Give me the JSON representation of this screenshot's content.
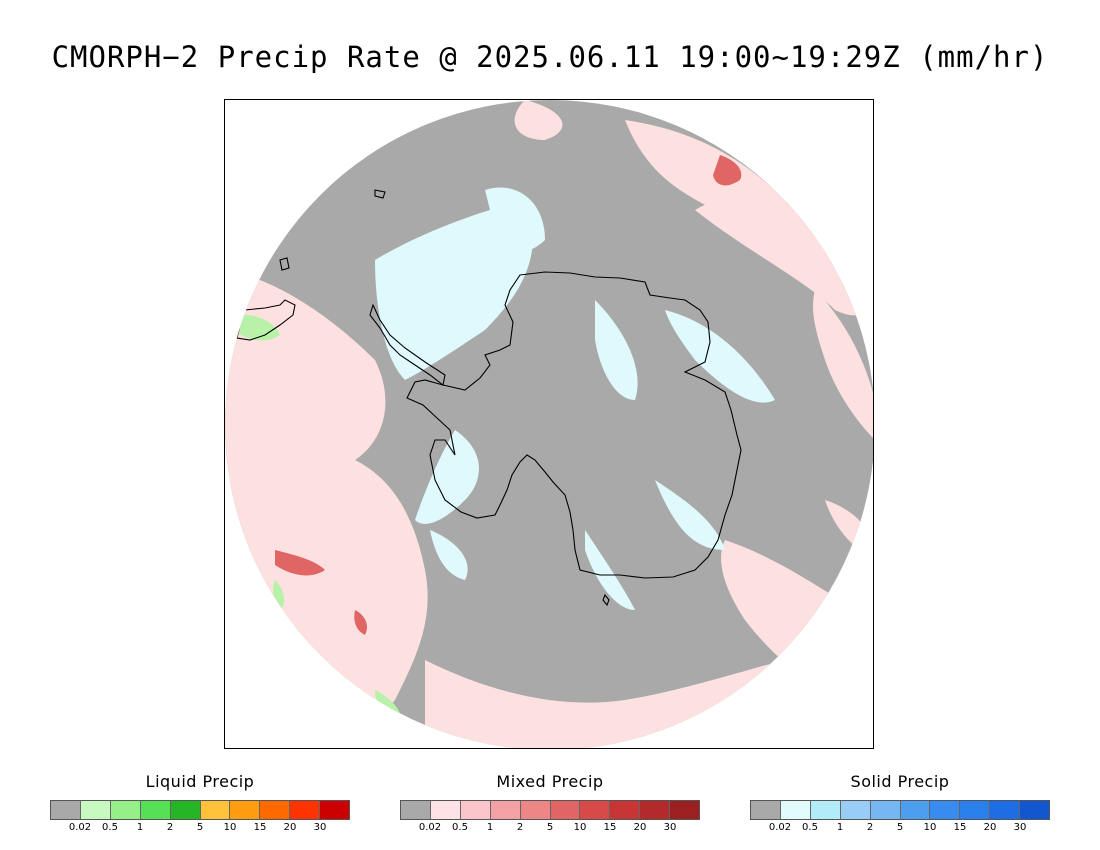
{
  "title": "CMORPH−2 Precip Rate @ 2025.06.11 19:00~19:29Z (mm/hr)",
  "map": {
    "projection": "south-polar-stereographic",
    "region": "Antarctica / Southern Ocean",
    "colors": {
      "no_precip": "#a9a9a9",
      "mixed_light": "#fde1e1",
      "mixed_mod": "#f4a3a3",
      "mixed_heavy": "#e06565",
      "solid_light": "#dff9fc",
      "liquid_light": "#b8f2a8",
      "coast": "#000000"
    }
  },
  "legends": [
    {
      "title": "Liquid Precip",
      "colors": [
        "#a9a9a9",
        "#c8f9c0",
        "#96ef88",
        "#55e055",
        "#26b526",
        "#ffc23a",
        "#ff9c10",
        "#ff6a00",
        "#ff3300",
        "#cc0000"
      ],
      "ticks": [
        "0.02",
        "0.5",
        "1",
        "2",
        "5",
        "10",
        "15",
        "20",
        "30"
      ]
    },
    {
      "title": "Mixed Precip",
      "colors": [
        "#a9a9a9",
        "#fde3e6",
        "#fbc6cb",
        "#f4a1a6",
        "#ee8686",
        "#e26565",
        "#d84a4a",
        "#c83535",
        "#b22a2a",
        "#9c2020"
      ],
      "ticks": [
        "0.02",
        "0.5",
        "1",
        "2",
        "5",
        "10",
        "15",
        "20",
        "30"
      ]
    },
    {
      "title": "Solid Precip",
      "colors": [
        "#a9a9a9",
        "#e2fcfc",
        "#b2ecf9",
        "#98cdf8",
        "#76b6f2",
        "#4e9ef0",
        "#388cf0",
        "#2a80ea",
        "#1d6ee5",
        "#1257d0"
      ],
      "ticks": [
        "0.02",
        "0.5",
        "1",
        "2",
        "5",
        "10",
        "15",
        "20",
        "30"
      ]
    }
  ]
}
